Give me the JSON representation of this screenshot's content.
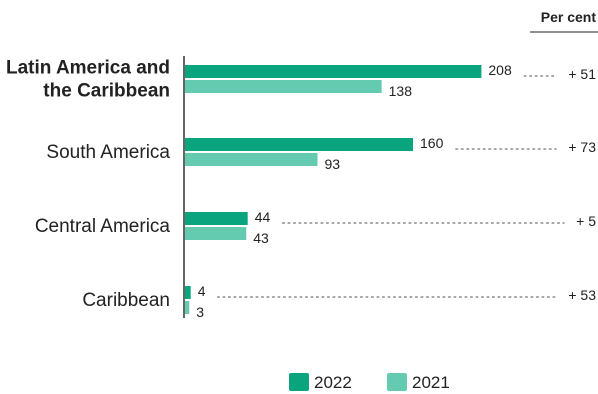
{
  "chart_data": {
    "type": "bar",
    "orientation": "horizontal",
    "unit_label": "Per cent",
    "categories": [
      "Latin America and the Caribbean",
      "South America",
      "Central America",
      "Caribbean"
    ],
    "category_lines": [
      [
        "Latin America and",
        "the Caribbean"
      ],
      [
        "South America"
      ],
      [
        "Central America"
      ],
      [
        "Caribbean"
      ]
    ],
    "highlighted_category": "Latin America and the Caribbean",
    "series": [
      {
        "name": "2022",
        "color": "#0aa57e",
        "values": [
          208,
          160,
          44,
          4
        ]
      },
      {
        "name": "2021",
        "color": "#64cbb0",
        "values": [
          138,
          93,
          43,
          3
        ]
      }
    ],
    "change_labels": [
      "+ 51",
      "+ 73",
      "+ 5",
      "+ 53"
    ],
    "xlim": [
      0,
      240
    ],
    "grid": false,
    "legend_position": "bottom"
  }
}
